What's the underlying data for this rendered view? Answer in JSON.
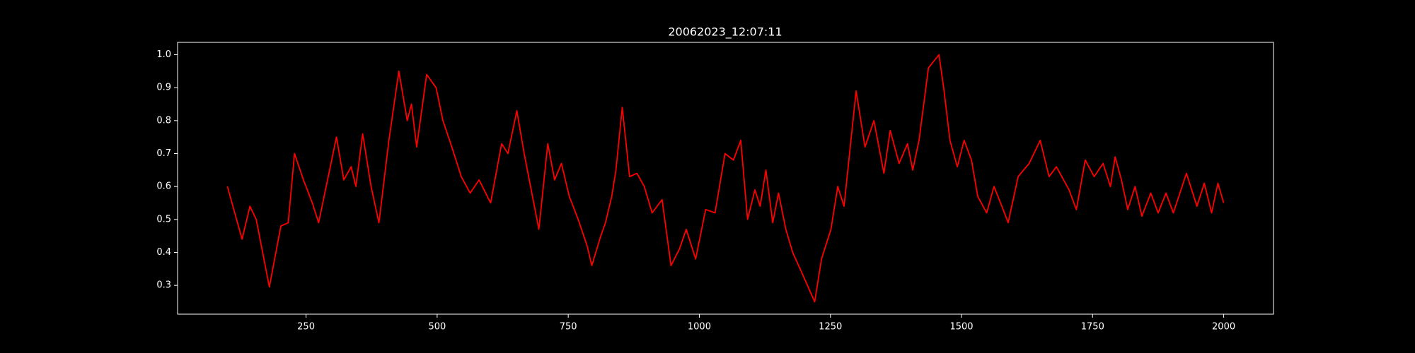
{
  "chart_data": {
    "type": "line",
    "title": "20062023_12:07:11",
    "x": [
      100,
      128,
      143,
      155,
      180,
      202,
      216,
      228,
      245,
      262,
      274,
      291,
      308,
      322,
      336,
      345,
      358,
      374,
      389,
      408,
      427,
      443,
      451,
      461,
      480,
      498,
      511,
      528,
      546,
      563,
      580,
      602,
      623,
      635,
      652,
      666,
      683,
      694,
      711,
      724,
      737,
      752,
      769,
      786,
      795,
      812,
      821,
      833,
      841,
      853,
      867,
      881,
      895,
      910,
      929,
      946,
      962,
      975,
      993,
      1012,
      1030,
      1049,
      1065,
      1079,
      1092,
      1106,
      1116,
      1127,
      1140,
      1151,
      1165,
      1178,
      1195,
      1220,
      1233,
      1251,
      1264,
      1276,
      1299,
      1316,
      1333,
      1352,
      1364,
      1381,
      1397,
      1407,
      1419,
      1437,
      1457,
      1466,
      1478,
      1492,
      1505,
      1519,
      1531,
      1548,
      1562,
      1577,
      1589,
      1608,
      1629,
      1650,
      1667,
      1681,
      1705,
      1719,
      1736,
      1753,
      1770,
      1784,
      1793,
      1805,
      1817,
      1831,
      1844,
      1861,
      1875,
      1890,
      1904,
      1929,
      1949,
      1963,
      1977,
      1989,
      2000
    ],
    "series": [
      {
        "color": "#ff0000",
        "values": [
          0.6,
          0.44,
          0.54,
          0.5,
          0.295,
          0.48,
          0.49,
          0.7,
          0.62,
          0.55,
          0.49,
          0.62,
          0.75,
          0.62,
          0.66,
          0.6,
          0.76,
          0.6,
          0.49,
          0.74,
          0.95,
          0.8,
          0.85,
          0.72,
          0.94,
          0.9,
          0.8,
          0.72,
          0.63,
          0.58,
          0.62,
          0.55,
          0.73,
          0.7,
          0.83,
          0.7,
          0.56,
          0.47,
          0.73,
          0.62,
          0.67,
          0.57,
          0.5,
          0.42,
          0.36,
          0.45,
          0.49,
          0.57,
          0.65,
          0.84,
          0.63,
          0.64,
          0.6,
          0.52,
          0.56,
          0.36,
          0.41,
          0.47,
          0.38,
          0.53,
          0.52,
          0.7,
          0.68,
          0.74,
          0.5,
          0.59,
          0.54,
          0.65,
          0.49,
          0.58,
          0.47,
          0.4,
          0.34,
          0.25,
          0.38,
          0.47,
          0.6,
          0.54,
          0.89,
          0.72,
          0.8,
          0.64,
          0.77,
          0.67,
          0.73,
          0.65,
          0.74,
          0.96,
          1.0,
          0.9,
          0.74,
          0.66,
          0.74,
          0.68,
          0.57,
          0.52,
          0.6,
          0.54,
          0.49,
          0.63,
          0.67,
          0.74,
          0.63,
          0.66,
          0.59,
          0.53,
          0.68,
          0.63,
          0.67,
          0.6,
          0.69,
          0.62,
          0.53,
          0.6,
          0.51,
          0.58,
          0.52,
          0.58,
          0.52,
          0.64,
          0.54,
          0.61,
          0.52,
          0.61,
          0.55
        ]
      }
    ],
    "xlim": [
      5,
      2095
    ],
    "ylim": [
      0.2125,
      1.0375
    ],
    "xticks": [
      250,
      500,
      750,
      1000,
      1250,
      1500,
      1750,
      2000
    ],
    "yticks": [
      0.3,
      0.4,
      0.5,
      0.6,
      0.7,
      0.8,
      0.9,
      {
        "value": 1,
        "label": "1.0"
      }
    ]
  }
}
